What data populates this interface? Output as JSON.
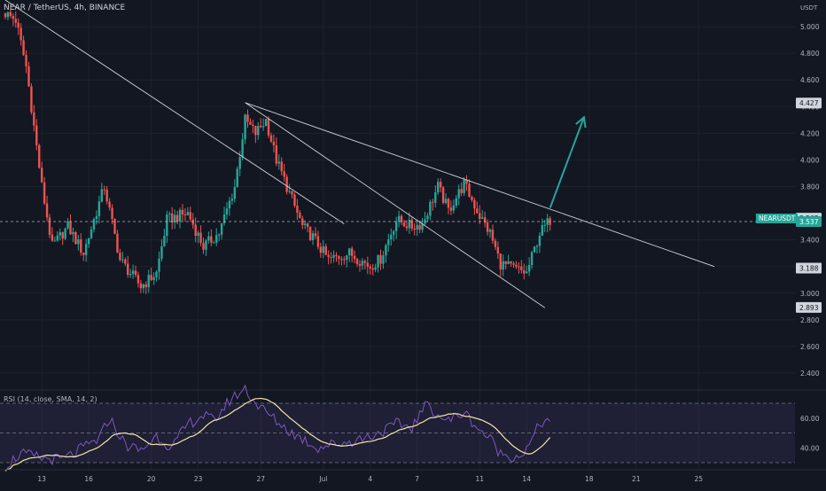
{
  "header": {
    "title": "NEAR / TetherUS, 4h, BINANCE",
    "currency": "USDT"
  },
  "rsi": {
    "label": "RSI (14, close, SMA, 14, 2)",
    "levels": [
      70,
      50,
      30
    ],
    "ticks": [
      "60.00",
      "40.00"
    ],
    "line_color": "#7e57c2",
    "ma_color": "#f5e6a8",
    "band_color": "#7e57c2"
  },
  "colors": {
    "up": "#26a69a",
    "down": "#ef5350",
    "trendline": "#cfd2d9",
    "arrow": "#26a69a",
    "background": "#131722"
  },
  "chart_data": {
    "type": "candlestick",
    "title": "NEAR / TetherUS, 4h, BINANCE",
    "x_tick_labels": [
      "13",
      "16",
      "20",
      "23",
      "27",
      "Jul",
      "4",
      "7",
      "11",
      "14",
      "18",
      "21",
      "25"
    ],
    "x_tick_bars": [
      14,
      32,
      56,
      74,
      98,
      122,
      140,
      158,
      182,
      200,
      224,
      242,
      266
    ],
    "y_ticks": [
      "5.000",
      "4.800",
      "4.600",
      "4.400",
      "4.200",
      "4.000",
      "3.800",
      "3.400",
      "3.200",
      "3.000",
      "2.800",
      "2.600",
      "2.400"
    ],
    "y_tick_values": [
      5.0,
      4.8,
      4.6,
      4.4,
      4.2,
      4.0,
      3.8,
      3.4,
      3.2,
      3.0,
      2.8,
      2.6,
      2.4
    ],
    "ylim": [
      2.3,
      5.2
    ],
    "price_labels": [
      {
        "text": "4.427",
        "value": 4.427
      },
      {
        "text": "3.563",
        "value": 3.563
      },
      {
        "text": "3.188",
        "value": 3.188
      },
      {
        "text": "2.893",
        "value": 2.893
      }
    ],
    "current": {
      "symbol": "NEARUSDT",
      "price": "3.537",
      "value": 3.537
    },
    "trendlines": [
      {
        "name": "upper-resistance",
        "from": [
          92,
          4.43
        ],
        "to": [
          272,
          3.2
        ]
      },
      {
        "name": "steep-resistance",
        "from": [
          0,
          5.2
        ],
        "to": [
          130,
          3.52
        ]
      },
      {
        "name": "lower-support",
        "from": [
          92,
          4.43
        ],
        "to": [
          207,
          2.89
        ]
      }
    ],
    "arrow": {
      "from": [
        209,
        3.64
      ],
      "to": [
        222,
        4.32
      ]
    },
    "price_anchors": [
      [
        0,
        5.1
      ],
      [
        4,
        5.05
      ],
      [
        8,
        4.7
      ],
      [
        14,
        3.8
      ],
      [
        18,
        3.35
      ],
      [
        24,
        3.5
      ],
      [
        30,
        3.3
      ],
      [
        38,
        3.8
      ],
      [
        44,
        3.25
      ],
      [
        52,
        3.05
      ],
      [
        58,
        3.15
      ],
      [
        62,
        3.55
      ],
      [
        70,
        3.6
      ],
      [
        76,
        3.35
      ],
      [
        82,
        3.45
      ],
      [
        88,
        3.8
      ],
      [
        92,
        4.3
      ],
      [
        96,
        4.2
      ],
      [
        100,
        4.3
      ],
      [
        104,
        4.0
      ],
      [
        108,
        3.8
      ],
      [
        114,
        3.5
      ],
      [
        118,
        3.42
      ],
      [
        124,
        3.25
      ],
      [
        132,
        3.3
      ],
      [
        140,
        3.2
      ],
      [
        144,
        3.26
      ],
      [
        150,
        3.55
      ],
      [
        156,
        3.5
      ],
      [
        160,
        3.52
      ],
      [
        166,
        3.8
      ],
      [
        170,
        3.62
      ],
      [
        176,
        3.82
      ],
      [
        182,
        3.58
      ],
      [
        186,
        3.45
      ],
      [
        190,
        3.22
      ],
      [
        196,
        3.18
      ],
      [
        200,
        3.15
      ],
      [
        205,
        3.45
      ],
      [
        209,
        3.55
      ]
    ],
    "bar_count": 210,
    "rsi_anchors": [
      [
        0,
        28
      ],
      [
        6,
        36
      ],
      [
        14,
        33
      ],
      [
        22,
        32
      ],
      [
        30,
        40
      ],
      [
        36,
        46
      ],
      [
        40,
        60
      ],
      [
        46,
        42
      ],
      [
        52,
        38
      ],
      [
        58,
        48
      ],
      [
        64,
        40
      ],
      [
        70,
        56
      ],
      [
        76,
        62
      ],
      [
        80,
        58
      ],
      [
        86,
        72
      ],
      [
        92,
        80
      ],
      [
        96,
        70
      ],
      [
        100,
        64
      ],
      [
        104,
        58
      ],
      [
        110,
        50
      ],
      [
        116,
        44
      ],
      [
        120,
        40
      ],
      [
        124,
        42
      ],
      [
        132,
        44
      ],
      [
        140,
        48
      ],
      [
        146,
        52
      ],
      [
        150,
        56
      ],
      [
        156,
        54
      ],
      [
        162,
        70
      ],
      [
        166,
        62
      ],
      [
        170,
        58
      ],
      [
        176,
        64
      ],
      [
        182,
        52
      ],
      [
        186,
        46
      ],
      [
        190,
        36
      ],
      [
        196,
        34
      ],
      [
        200,
        38
      ],
      [
        205,
        56
      ],
      [
        209,
        60
      ]
    ]
  }
}
